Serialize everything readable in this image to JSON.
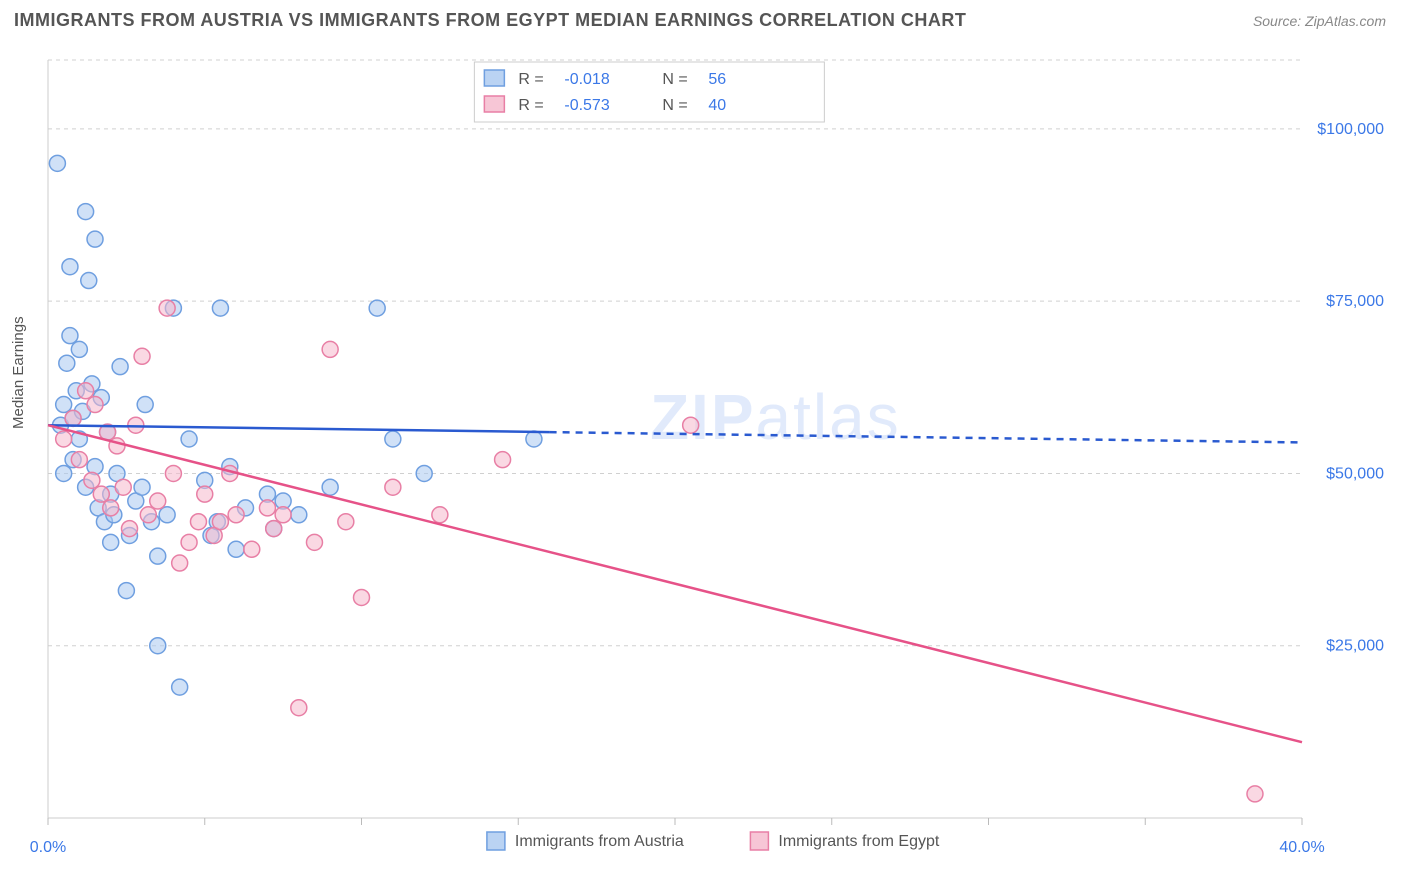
{
  "title": "IMMIGRANTS FROM AUSTRIA VS IMMIGRANTS FROM EGYPT MEDIAN EARNINGS CORRELATION CHART",
  "source": "Source: ZipAtlas.com",
  "ylabel": "Median Earnings",
  "watermark": {
    "part1": "ZIP",
    "part2": "atlas"
  },
  "chart": {
    "type": "scatter-with-regression",
    "background": "#ffffff",
    "grid_color": "#d0d0d0",
    "axis_color": "#cccccc",
    "xlim": [
      0,
      40
    ],
    "ylim": [
      0,
      110000
    ],
    "x_ticks": [
      0,
      5,
      10,
      15,
      20,
      25,
      30,
      35,
      40
    ],
    "x_tick_labels": {
      "0": "0.0%",
      "40": "40.0%"
    },
    "y_ticks": [
      25000,
      50000,
      75000,
      100000
    ],
    "y_tick_labels": [
      "$25,000",
      "$50,000",
      "$75,000",
      "$100,000"
    ],
    "series": [
      {
        "name": "Immigrants from Austria",
        "color_fill": "#a9c8f0",
        "color_stroke": "#6f9fe0",
        "fill_opacity": 0.55,
        "marker_r": 8,
        "R": "-0.018",
        "N": "56",
        "reg_line": {
          "x1": 0,
          "y1": 57000,
          "x2": 16,
          "y2": 56000,
          "ext_x2": 40,
          "ext_y2": 54500,
          "color": "#2a5ad0",
          "width": 2.5
        },
        "points": [
          [
            0.3,
            95000
          ],
          [
            0.4,
            57000
          ],
          [
            0.5,
            50000
          ],
          [
            0.5,
            60000
          ],
          [
            0.6,
            66000
          ],
          [
            0.7,
            80000
          ],
          [
            0.7,
            70000
          ],
          [
            0.8,
            58000
          ],
          [
            0.8,
            52000
          ],
          [
            0.9,
            62000
          ],
          [
            1.0,
            68000
          ],
          [
            1.0,
            55000
          ],
          [
            1.1,
            59000
          ],
          [
            1.2,
            48000
          ],
          [
            1.2,
            88000
          ],
          [
            1.3,
            78000
          ],
          [
            1.4,
            63000
          ],
          [
            1.5,
            51000
          ],
          [
            1.5,
            84000
          ],
          [
            1.6,
            45000
          ],
          [
            1.7,
            61000
          ],
          [
            1.8,
            43000
          ],
          [
            1.9,
            56000
          ],
          [
            2.0,
            40000
          ],
          [
            2.0,
            47000
          ],
          [
            2.1,
            44000
          ],
          [
            2.2,
            50000
          ],
          [
            2.3,
            65500
          ],
          [
            2.5,
            33000
          ],
          [
            2.6,
            41000
          ],
          [
            2.8,
            46000
          ],
          [
            3.0,
            48000
          ],
          [
            3.1,
            60000
          ],
          [
            3.3,
            43000
          ],
          [
            3.5,
            38000
          ],
          [
            3.5,
            25000
          ],
          [
            3.8,
            44000
          ],
          [
            4.0,
            74000
          ],
          [
            4.2,
            19000
          ],
          [
            4.5,
            55000
          ],
          [
            5.0,
            49000
          ],
          [
            5.2,
            41000
          ],
          [
            5.4,
            43000
          ],
          [
            5.5,
            74000
          ],
          [
            5.8,
            51000
          ],
          [
            6.0,
            39000
          ],
          [
            6.3,
            45000
          ],
          [
            7.0,
            47000
          ],
          [
            7.2,
            42000
          ],
          [
            7.5,
            46000
          ],
          [
            8.0,
            44000
          ],
          [
            9.0,
            48000
          ],
          [
            10.5,
            74000
          ],
          [
            11.0,
            55000
          ],
          [
            12.0,
            50000
          ],
          [
            15.5,
            55000
          ]
        ]
      },
      {
        "name": "Immigrants from Egypt",
        "color_fill": "#f5b8cc",
        "color_stroke": "#e87fa5",
        "fill_opacity": 0.55,
        "marker_r": 8,
        "R": "-0.573",
        "N": "40",
        "reg_line": {
          "x1": 0,
          "y1": 57000,
          "x2": 40,
          "y2": 11000,
          "color": "#e65288",
          "width": 2.5
        },
        "points": [
          [
            0.5,
            55000
          ],
          [
            0.8,
            58000
          ],
          [
            1.0,
            52000
          ],
          [
            1.2,
            62000
          ],
          [
            1.4,
            49000
          ],
          [
            1.5,
            60000
          ],
          [
            1.7,
            47000
          ],
          [
            1.9,
            56000
          ],
          [
            2.0,
            45000
          ],
          [
            2.2,
            54000
          ],
          [
            2.4,
            48000
          ],
          [
            2.6,
            42000
          ],
          [
            2.8,
            57000
          ],
          [
            3.0,
            67000
          ],
          [
            3.2,
            44000
          ],
          [
            3.5,
            46000
          ],
          [
            3.8,
            74000
          ],
          [
            4.0,
            50000
          ],
          [
            4.2,
            37000
          ],
          [
            4.5,
            40000
          ],
          [
            4.8,
            43000
          ],
          [
            5.0,
            47000
          ],
          [
            5.3,
            41000
          ],
          [
            5.5,
            43000
          ],
          [
            5.8,
            50000
          ],
          [
            6.0,
            44000
          ],
          [
            6.5,
            39000
          ],
          [
            7.0,
            45000
          ],
          [
            7.2,
            42000
          ],
          [
            7.5,
            44000
          ],
          [
            8.0,
            16000
          ],
          [
            8.5,
            40000
          ],
          [
            9.0,
            68000
          ],
          [
            9.5,
            43000
          ],
          [
            10.0,
            32000
          ],
          [
            11.0,
            48000
          ],
          [
            12.5,
            44000
          ],
          [
            14.5,
            52000
          ],
          [
            20.5,
            57000
          ],
          [
            38.5,
            3500
          ]
        ]
      }
    ],
    "legend_top": {
      "R_label": "R =",
      "N_label": "N ="
    },
    "legend_bottom": {
      "box_size": 18
    }
  }
}
